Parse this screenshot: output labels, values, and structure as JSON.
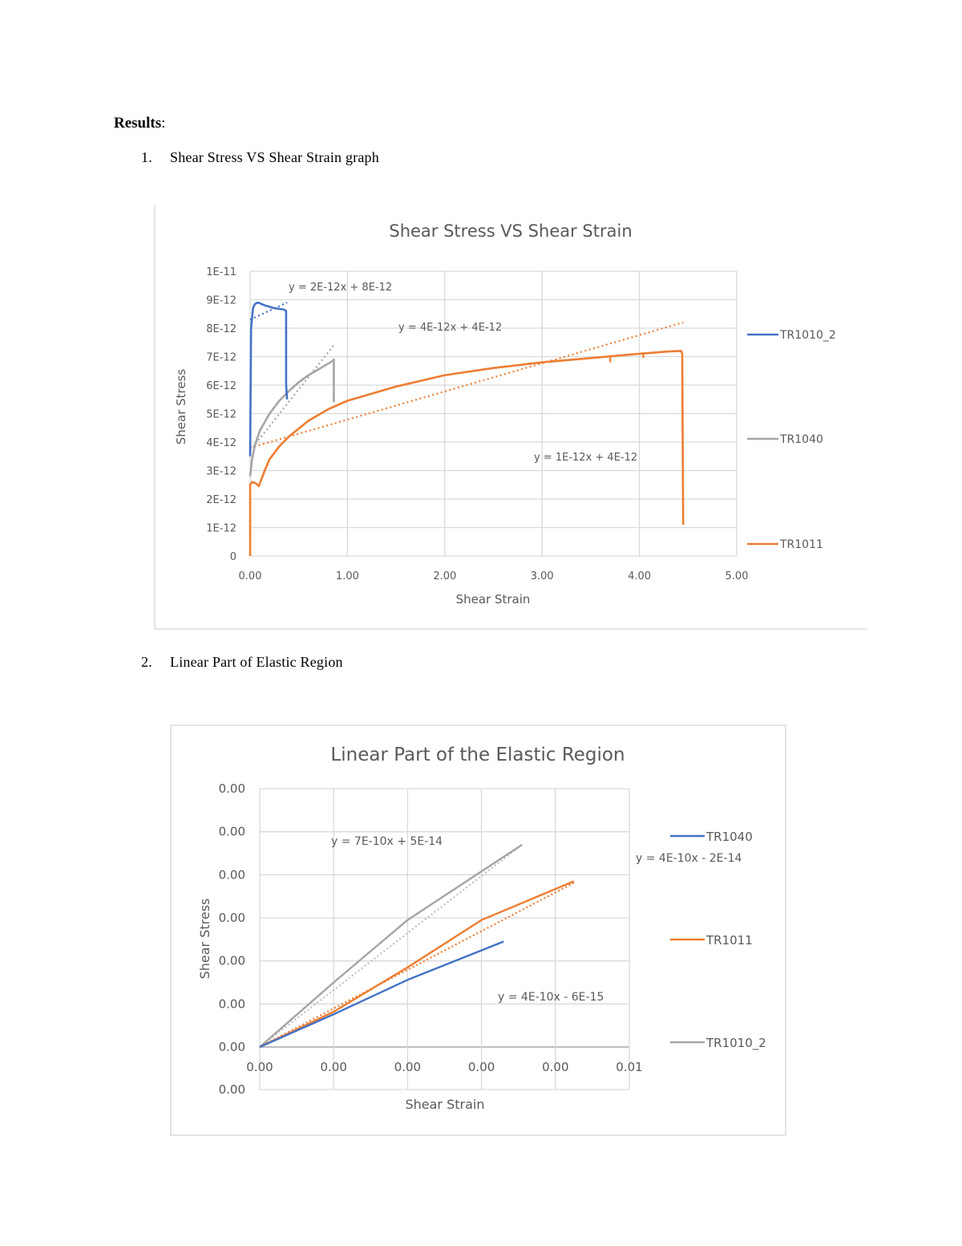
{
  "document": {
    "heading": "Results",
    "heading_suffix": ":",
    "items": [
      {
        "number": "1.",
        "label": "Shear Stress VS Shear Strain graph"
      },
      {
        "number": "2.",
        "label": "Linear Part of Elastic Region"
      }
    ]
  },
  "colors": {
    "blue": "#4472C4",
    "gray": "#A5A5A5",
    "orange": "#ED7D31",
    "grid": "#D9D9D9",
    "text": "#595959"
  },
  "chart_data": [
    {
      "type": "line",
      "title": "Shear Stress VS Shear Strain",
      "xlabel": "Shear Strain",
      "ylabel": "Shear Stress",
      "xlim": [
        0,
        5
      ],
      "ylim": [
        0,
        1e-11
      ],
      "x_ticks": [
        "0.00",
        "1.00",
        "2.00",
        "3.00",
        "4.00",
        "5.00"
      ],
      "y_ticks": [
        "0",
        "1E-12",
        "2E-12",
        "3E-12",
        "4E-12",
        "5E-12",
        "6E-12",
        "7E-12",
        "8E-12",
        "9E-12",
        "1E-11"
      ],
      "grid": true,
      "legend_position": "right",
      "legend": [
        "TR1010_2",
        "TR1040",
        "TR1011"
      ],
      "series": [
        {
          "name": "TR1010_2",
          "color": "#4472C4",
          "x": [
            0.0,
            0.01,
            0.03,
            0.05,
            0.08,
            0.15,
            0.25,
            0.35,
            0.37,
            0.37,
            0.38
          ],
          "y": [
            3.5e-12,
            8e-12,
            8.7e-12,
            8.85e-12,
            8.9e-12,
            8.8e-12,
            8.7e-12,
            8.65e-12,
            8.6e-12,
            6e-12,
            5.5e-12
          ]
        },
        {
          "name": "TR1040",
          "color": "#A5A5A5",
          "x": [
            0.0,
            0.02,
            0.05,
            0.1,
            0.2,
            0.3,
            0.4,
            0.5,
            0.6,
            0.7,
            0.8,
            0.85,
            0.86,
            0.86
          ],
          "y": [
            2.8e-12,
            3.4e-12,
            3.9e-12,
            4.4e-12,
            5e-12,
            5.45e-12,
            5.8e-12,
            6.1e-12,
            6.35e-12,
            6.55e-12,
            6.75e-12,
            6.85e-12,
            6.9e-12,
            5.4e-12
          ]
        },
        {
          "name": "TR1011",
          "color": "#ED7D31",
          "x": [
            0.0,
            0.0,
            0.02,
            0.06,
            0.09,
            0.1,
            0.15,
            0.2,
            0.3,
            0.4,
            0.6,
            0.8,
            1.0,
            1.5,
            2.0,
            2.5,
            3.0,
            3.5,
            4.0,
            4.3,
            4.43,
            4.44,
            4.45
          ],
          "y": [
            0.0,
            2.5e-12,
            2.6e-12,
            2.55e-12,
            2.45e-12,
            2.55e-12,
            3e-12,
            3.4e-12,
            3.85e-12,
            4.2e-12,
            4.75e-12,
            5.15e-12,
            5.45e-12,
            5.95e-12,
            6.35e-12,
            6.6e-12,
            6.8e-12,
            6.95e-12,
            7.1e-12,
            7.18e-12,
            7.2e-12,
            7.1e-12,
            1.1e-12
          ]
        }
      ],
      "trendlines": [
        {
          "series": "TR1010_2",
          "equation": "y = 2E-12x + 8E-12",
          "x": [
            0.0,
            0.38
          ],
          "y": [
            8.3e-12,
            8.9e-12
          ]
        },
        {
          "series": "TR1040",
          "equation": "y = 4E-12x + 4E-12",
          "x": [
            0.0,
            0.86
          ],
          "y": [
            3.7e-12,
            7.4e-12
          ]
        },
        {
          "series": "TR1011",
          "equation": "y = 1E-12x + 4E-12",
          "x": [
            0.0,
            4.45
          ],
          "y": [
            3.8e-12,
            8.2e-12
          ]
        }
      ],
      "annotations": [
        "y = 2E-12x + 8E-12",
        "y = 4E-12x + 4E-12",
        "y = 1E-12x + 4E-12"
      ]
    },
    {
      "type": "line",
      "title": "Linear Part of the Elastic Region",
      "xlabel": "Shear Strain",
      "ylabel": "Shear Stress",
      "xlim": [
        0,
        0.01
      ],
      "x_ticks": [
        "0.00",
        "0.00",
        "0.00",
        "0.00",
        "0.00",
        "0.01"
      ],
      "y_ticks": [
        "0.00",
        "0.00",
        "0.00",
        "0.00",
        "0.00",
        "0.00",
        "0.00",
        "0.00"
      ],
      "grid": true,
      "legend_position": "right",
      "legend": [
        "TR1040",
        "TR1011",
        "TR1010_2"
      ],
      "series": [
        {
          "name": "TR1040",
          "color": "#4472C4",
          "x": [
            0.0,
            0.002,
            0.004,
            0.0066
          ],
          "y": [
            0.0,
            0.76,
            1.56,
            2.45
          ],
          "y_unit_note": "relative units (y-tick labels all read 0.00)"
        },
        {
          "name": "TR1011",
          "color": "#ED7D31",
          "x": [
            0.0,
            0.002,
            0.004,
            0.006,
            0.0085
          ],
          "y": [
            0.0,
            0.82,
            1.85,
            2.95,
            3.85
          ]
        },
        {
          "name": "TR1010_2",
          "color": "#A5A5A5",
          "x": [
            0.0,
            0.002,
            0.004,
            0.0071
          ],
          "y": [
            0.0,
            1.5,
            2.95,
            4.7
          ]
        }
      ],
      "trendlines": [
        {
          "series": "TR1010_2",
          "equation": "y = 7E-10x + 5E-14"
        },
        {
          "series": "TR1011",
          "equation": "y = 4E-10x - 2E-14"
        },
        {
          "series": "TR1040",
          "equation": "y = 4E-10x - 6E-15"
        }
      ],
      "annotations": [
        "y = 7E-10x + 5E-14",
        "y = 4E-10x - 2E-14",
        "y = 4E-10x - 6E-15"
      ]
    }
  ]
}
